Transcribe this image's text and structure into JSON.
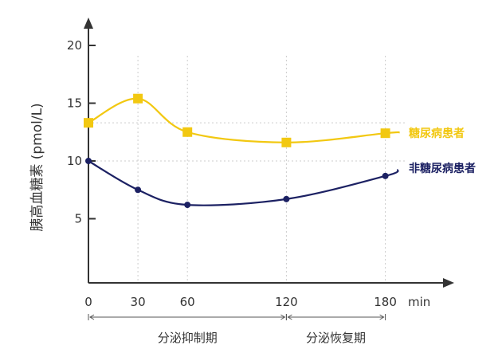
{
  "chart_data": {
    "type": "line",
    "ylabel": "胰高血糖素 (pmol/L)",
    "xlabel": "min",
    "x_ticks": [
      0,
      30,
      60,
      120,
      180
    ],
    "y_ticks": [
      5,
      10,
      15,
      20
    ],
    "xlim": [
      0,
      210
    ],
    "ylim": [
      0,
      22
    ],
    "grid": "dashed",
    "series": [
      {
        "name": "糖尿病患者",
        "color": "#f2c811",
        "marker": "square",
        "x": [
          0,
          30,
          60,
          120,
          180
        ],
        "y": [
          13.3,
          15.4,
          12.5,
          11.6,
          12.4
        ]
      },
      {
        "name": "非糖尿病患者",
        "color": "#1c2163",
        "marker": "circle",
        "x": [
          0,
          30,
          60,
          120,
          180
        ],
        "y": [
          10.0,
          7.5,
          6.2,
          6.7,
          8.7
        ]
      }
    ],
    "phases": [
      {
        "label": "分泌抑制期",
        "from": 0,
        "to": 120
      },
      {
        "label": "分泌恢复期",
        "from": 120,
        "to": 180
      }
    ]
  }
}
